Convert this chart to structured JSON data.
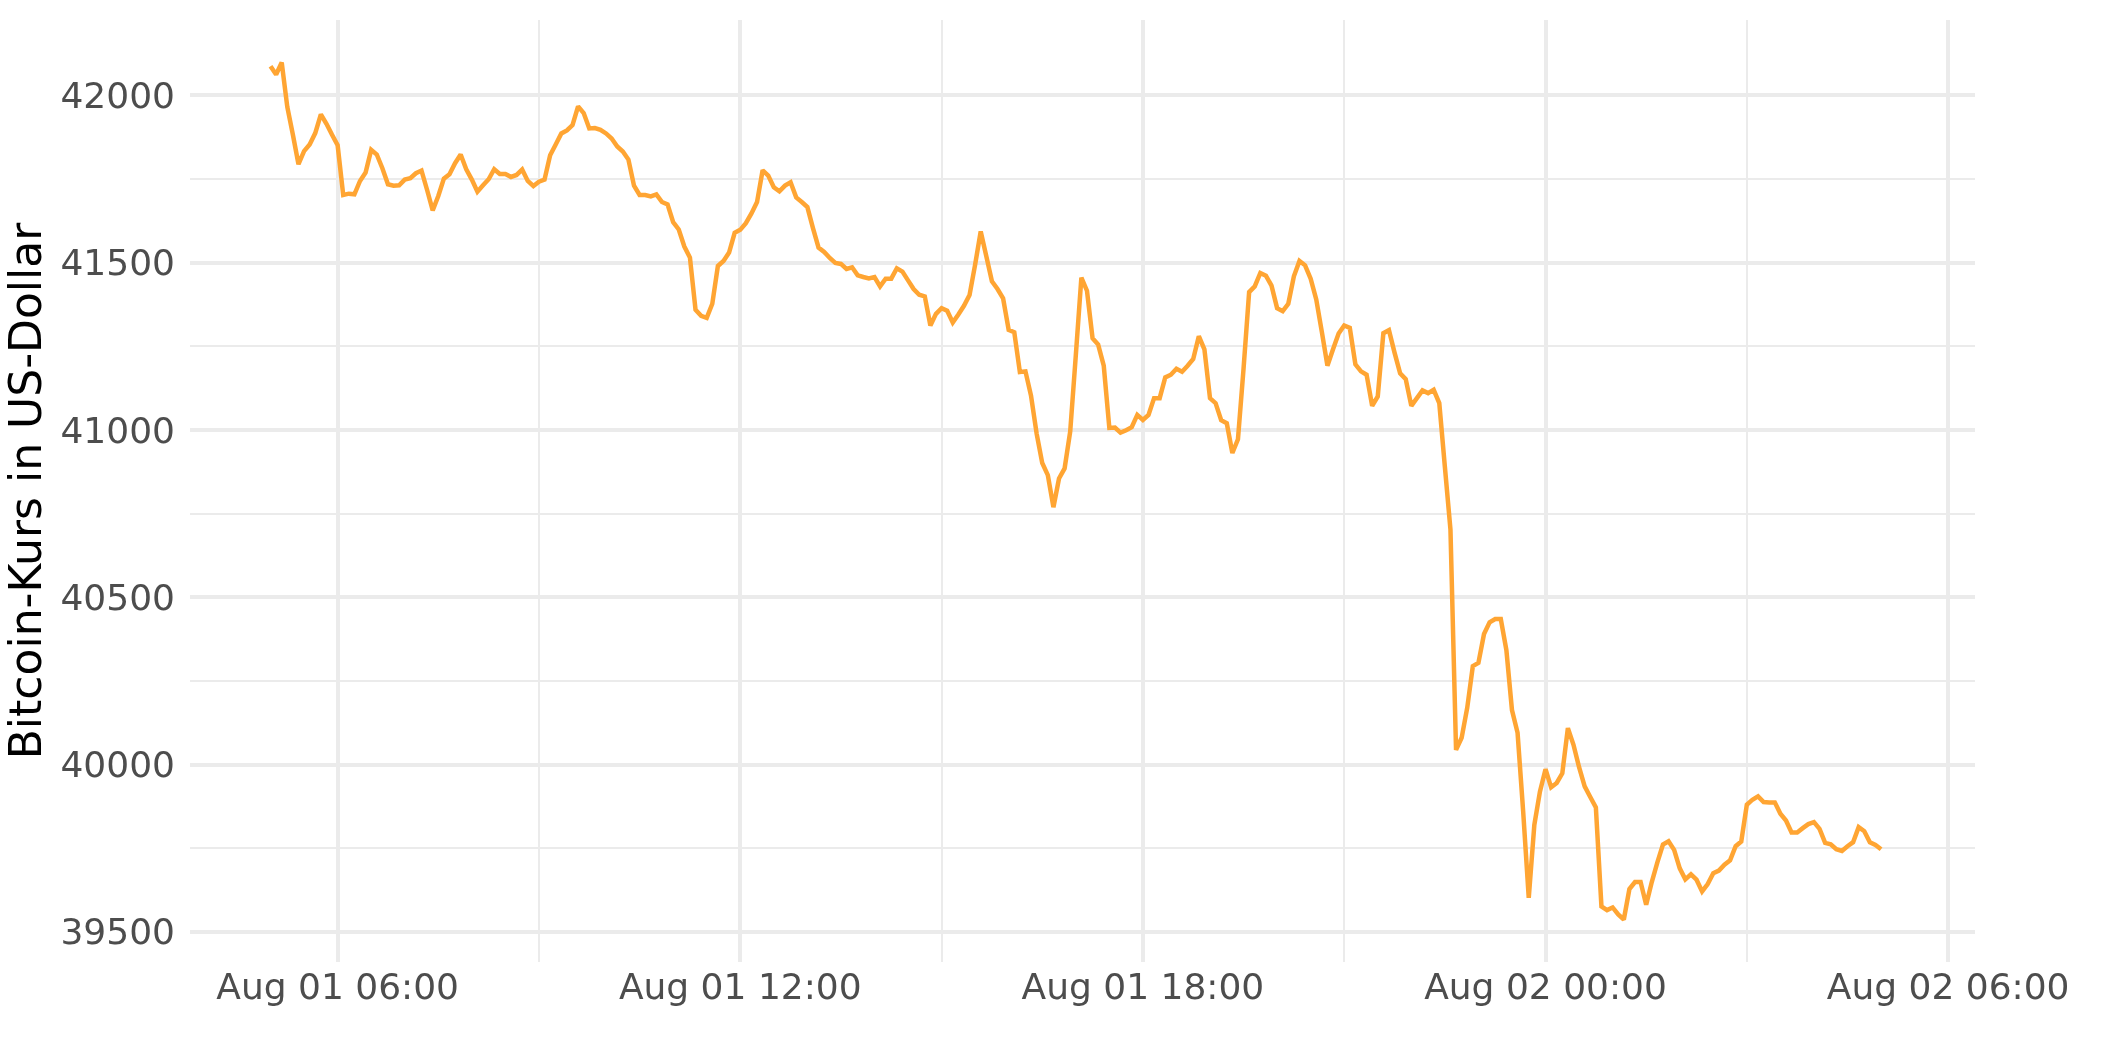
{
  "chart_data": {
    "type": "line",
    "ylabel": "Bitcoin-Kurs in US-Dollar",
    "xlim": [
      "--08-01T03:48",
      "--08-02T06:24"
    ],
    "ylim": [
      39410,
      42225
    ],
    "xticks": [
      {
        "value": "--08-01T06:00",
        "label": "Aug 01 06:00"
      },
      {
        "value": "--08-01T09:00",
        "label": null
      },
      {
        "value": "--08-01T12:00",
        "label": "Aug 01 12:00"
      },
      {
        "value": "--08-01T15:00",
        "label": null
      },
      {
        "value": "--08-01T18:00",
        "label": "Aug 01 18:00"
      },
      {
        "value": "--08-01T21:00",
        "label": null
      },
      {
        "value": "--08-02T00:00",
        "label": "Aug 02 00:00"
      },
      {
        "value": "--08-02T03:00",
        "label": null
      },
      {
        "value": "--08-02T06:00",
        "label": "Aug 02 06:00"
      }
    ],
    "yticks": [
      39500,
      {
        "value": 39750,
        "label": null
      },
      40000,
      {
        "value": 40250,
        "label": null
      },
      40500,
      {
        "value": 40750,
        "label": null
      },
      41000,
      {
        "value": 41250,
        "label": null
      },
      41500,
      {
        "value": 41750,
        "label": null
      },
      42000
    ],
    "grid": true,
    "line_style": "solid",
    "marker": "none",
    "x": [
      "--08-01T05:00",
      "--08-01T05:05",
      "--08-01T05:10",
      "--08-01T05:15",
      "--08-01T05:20",
      "--08-01T05:25",
      "--08-01T05:30",
      "--08-01T05:35",
      "--08-01T05:40",
      "--08-01T05:45",
      "--08-01T05:50",
      "--08-01T05:55",
      "--08-01T06:00",
      "--08-01T06:05",
      "--08-01T06:10",
      "--08-01T06:15",
      "--08-01T06:20",
      "--08-01T06:25",
      "--08-01T06:30",
      "--08-01T06:35",
      "--08-01T06:40",
      "--08-01T06:45",
      "--08-01T06:50",
      "--08-01T06:55",
      "--08-01T07:00",
      "--08-01T07:05",
      "--08-01T07:10",
      "--08-01T07:15",
      "--08-01T07:20",
      "--08-01T07:25",
      "--08-01T07:30",
      "--08-01T07:35",
      "--08-01T07:40",
      "--08-01T07:45",
      "--08-01T07:50",
      "--08-01T07:55",
      "--08-01T08:00",
      "--08-01T08:05",
      "--08-01T08:10",
      "--08-01T08:15",
      "--08-01T08:20",
      "--08-01T08:25",
      "--08-01T08:30",
      "--08-01T08:35",
      "--08-01T08:40",
      "--08-01T08:45",
      "--08-01T08:50",
      "--08-01T08:55",
      "--08-01T09:00",
      "--08-01T09:05",
      "--08-01T09:10",
      "--08-01T09:15",
      "--08-01T09:20",
      "--08-01T09:25",
      "--08-01T09:30",
      "--08-01T09:35",
      "--08-01T09:40",
      "--08-01T09:45",
      "--08-01T09:50",
      "--08-01T09:55",
      "--08-01T10:00",
      "--08-01T10:05",
      "--08-01T10:10",
      "--08-01T10:15",
      "--08-01T10:20",
      "--08-01T10:25",
      "--08-01T10:30",
      "--08-01T10:35",
      "--08-01T10:40",
      "--08-01T10:45",
      "--08-01T10:50",
      "--08-01T10:55",
      "--08-01T11:00",
      "--08-01T11:05",
      "--08-01T11:10",
      "--08-01T11:15",
      "--08-01T11:20",
      "--08-01T11:25",
      "--08-01T11:30",
      "--08-01T11:35",
      "--08-01T11:40",
      "--08-01T11:45",
      "--08-01T11:50",
      "--08-01T11:55",
      "--08-01T12:00",
      "--08-01T12:05",
      "--08-01T12:10",
      "--08-01T12:15",
      "--08-01T12:20",
      "--08-01T12:25",
      "--08-01T12:30",
      "--08-01T12:35",
      "--08-01T12:40",
      "--08-01T12:45",
      "--08-01T12:50",
      "--08-01T12:55",
      "--08-01T13:00",
      "--08-01T13:05",
      "--08-01T13:10",
      "--08-01T13:15",
      "--08-01T13:20",
      "--08-01T13:25",
      "--08-01T13:30",
      "--08-01T13:35",
      "--08-01T13:40",
      "--08-01T13:45",
      "--08-01T13:50",
      "--08-01T13:55",
      "--08-01T14:00",
      "--08-01T14:05",
      "--08-01T14:10",
      "--08-01T14:15",
      "--08-01T14:20",
      "--08-01T14:25",
      "--08-01T14:30",
      "--08-01T14:35",
      "--08-01T14:40",
      "--08-01T14:45",
      "--08-01T14:50",
      "--08-01T14:55",
      "--08-01T15:00",
      "--08-01T15:05",
      "--08-01T15:10",
      "--08-01T15:15",
      "--08-01T15:20",
      "--08-01T15:25",
      "--08-01T15:30",
      "--08-01T15:35",
      "--08-01T15:40",
      "--08-01T15:45",
      "--08-01T15:50",
      "--08-01T15:55",
      "--08-01T16:00",
      "--08-01T16:05",
      "--08-01T16:10",
      "--08-01T16:15",
      "--08-01T16:20",
      "--08-01T16:25",
      "--08-01T16:30",
      "--08-01T16:35",
      "--08-01T16:40",
      "--08-01T16:45",
      "--08-01T16:50",
      "--08-01T16:55",
      "--08-01T17:00",
      "--08-01T17:05",
      "--08-01T17:10",
      "--08-01T17:15",
      "--08-01T17:20",
      "--08-01T17:25",
      "--08-01T17:30",
      "--08-01T17:35",
      "--08-01T17:40",
      "--08-01T17:45",
      "--08-01T17:50",
      "--08-01T17:55",
      "--08-01T18:00",
      "--08-01T18:05",
      "--08-01T18:10",
      "--08-01T18:15",
      "--08-01T18:20",
      "--08-01T18:25",
      "--08-01T18:30",
      "--08-01T18:35",
      "--08-01T18:40",
      "--08-01T18:45",
      "--08-01T18:50",
      "--08-01T18:55",
      "--08-01T19:00",
      "--08-01T19:05",
      "--08-01T19:10",
      "--08-01T19:15",
      "--08-01T19:20",
      "--08-01T19:25",
      "--08-01T19:30",
      "--08-01T19:35",
      "--08-01T19:40",
      "--08-01T19:45",
      "--08-01T19:50",
      "--08-01T19:55",
      "--08-01T20:00",
      "--08-01T20:05",
      "--08-01T20:10",
      "--08-01T20:15",
      "--08-01T20:20",
      "--08-01T20:25",
      "--08-01T20:30",
      "--08-01T20:35",
      "--08-01T20:40",
      "--08-01T20:45",
      "--08-01T20:50",
      "--08-01T20:55",
      "--08-01T21:00",
      "--08-01T21:05",
      "--08-01T21:10",
      "--08-01T21:15",
      "--08-01T21:20",
      "--08-01T21:25",
      "--08-01T21:30",
      "--08-01T21:35",
      "--08-01T21:40",
      "--08-01T21:45",
      "--08-01T21:50",
      "--08-01T21:55",
      "--08-01T22:00",
      "--08-01T22:05",
      "--08-01T22:10",
      "--08-01T22:15",
      "--08-01T22:20",
      "--08-01T22:25",
      "--08-01T22:30",
      "--08-01T22:35",
      "--08-01T22:40",
      "--08-01T22:45",
      "--08-01T22:50",
      "--08-01T22:55",
      "--08-01T23:00",
      "--08-01T23:05",
      "--08-01T23:10",
      "--08-01T23:15",
      "--08-01T23:20",
      "--08-01T23:25",
      "--08-01T23:30",
      "--08-01T23:35",
      "--08-01T23:40",
      "--08-01T23:45",
      "--08-01T23:50",
      "--08-01T23:55",
      "--08-02T00:00",
      "--08-02T00:05",
      "--08-02T00:10",
      "--08-02T00:15",
      "--08-02T00:20",
      "--08-02T00:25",
      "--08-02T00:30",
      "--08-02T00:35",
      "--08-02T00:40",
      "--08-02T00:45",
      "--08-02T00:50",
      "--08-02T00:55",
      "--08-02T01:00",
      "--08-02T01:05",
      "--08-02T01:10",
      "--08-02T01:15",
      "--08-02T01:20",
      "--08-02T01:25",
      "--08-02T01:30",
      "--08-02T01:35",
      "--08-02T01:40",
      "--08-02T01:45",
      "--08-02T01:50",
      "--08-02T01:55",
      "--08-02T02:00",
      "--08-02T02:05",
      "--08-02T02:10",
      "--08-02T02:15",
      "--08-02T02:20",
      "--08-02T02:25",
      "--08-02T02:30",
      "--08-02T02:35",
      "--08-02T02:40",
      "--08-02T02:45",
      "--08-02T02:50",
      "--08-02T02:55",
      "--08-02T03:00",
      "--08-02T03:05",
      "--08-02T03:10",
      "--08-02T03:15",
      "--08-02T03:20",
      "--08-02T03:25",
      "--08-02T03:30",
      "--08-02T03:35",
      "--08-02T03:40",
      "--08-02T03:45",
      "--08-02T03:50",
      "--08-02T03:55",
      "--08-02T04:00",
      "--08-02T04:05",
      "--08-02T04:10",
      "--08-02T04:15",
      "--08-02T04:20",
      "--08-02T04:25",
      "--08-02T04:30",
      "--08-02T04:35",
      "--08-02T04:40",
      "--08-02T04:45",
      "--08-02T04:50",
      "--08-02T04:55",
      "--08-02T05:00"
    ],
    "series": [
      {
        "color": "#ffa533",
        "values": [
          42087,
          42062,
          42098,
          41965,
          41882,
          41794,
          41833,
          41853,
          41887,
          41943,
          41915,
          41882,
          41851,
          41702,
          41706,
          41704,
          41744,
          41769,
          41837,
          41823,
          41782,
          41734,
          41730,
          41731,
          41748,
          41752,
          41767,
          41775,
          41717,
          41656,
          41699,
          41751,
          41764,
          41797,
          41823,
          41779,
          41748,
          41712,
          41731,
          41749,
          41779,
          41765,
          41765,
          41756,
          41762,
          41778,
          41744,
          41729,
          41742,
          41748,
          41821,
          41853,
          41886,
          41895,
          41911,
          41967,
          41947,
          41901,
          41902,
          41897,
          41886,
          41871,
          41847,
          41832,
          41808,
          41730,
          41702,
          41702,
          41698,
          41704,
          41681,
          41674,
          41621,
          41599,
          41548,
          41515,
          41359,
          41341,
          41335,
          41377,
          41490,
          41505,
          41530,
          41589,
          41598,
          41618,
          41647,
          41681,
          41776,
          41760,
          41725,
          41713,
          41730,
          41740,
          41695,
          41681,
          41666,
          41603,
          41545,
          41532,
          41514,
          41499,
          41496,
          41481,
          41486,
          41462,
          41457,
          41453,
          41457,
          41429,
          41452,
          41452,
          41483,
          41473,
          41447,
          41421,
          41404,
          41399,
          41312,
          41347,
          41364,
          41356,
          41321,
          41345,
          41371,
          41403,
          41494,
          41593,
          41519,
          41444,
          41421,
          41393,
          41299,
          41292,
          41173,
          41175,
          41102,
          40989,
          40901,
          40865,
          40769,
          40855,
          40885,
          40995,
          41222,
          41455,
          41416,
          41274,
          41255,
          41192,
          41006,
          41007,
          40992,
          40999,
          41008,
          41045,
          41030,
          41045,
          41095,
          41095,
          41157,
          41165,
          41183,
          41174,
          41192,
          41212,
          41280,
          41241,
          41095,
          41080,
          41029,
          41020,
          40931,
          40972,
          41183,
          41412,
          41429,
          41469,
          41461,
          41431,
          41364,
          41355,
          41377,
          41459,
          41505,
          41492,
          41452,
          41390,
          41293,
          41192,
          41241,
          41288,
          41312,
          41305,
          41196,
          41175,
          41165,
          41072,
          41100,
          41289,
          41298,
          41231,
          41169,
          41152,
          41072,
          41095,
          41118,
          41110,
          41120,
          41080,
          40890,
          40702,
          40044,
          40080,
          40170,
          40294,
          40304,
          40390,
          40425,
          40435,
          40435,
          40342,
          40163,
          40095,
          39860,
          39602,
          39820,
          39919,
          39986,
          39932,
          39945,
          39974,
          40109,
          40059,
          39992,
          39935,
          39903,
          39872,
          39576,
          39565,
          39573,
          39552,
          39537,
          39628,
          39649,
          39649,
          39581,
          39649,
          39708,
          39761,
          39771,
          39745,
          39690,
          39657,
          39672,
          39656,
          39621,
          39643,
          39675,
          39683,
          39701,
          39714,
          39756,
          39770,
          39880,
          39895,
          39905,
          39888,
          39887,
          39887,
          39853,
          39833,
          39797,
          39797,
          39810,
          39822,
          39828,
          39808,
          39766,
          39762,
          39747,
          39742,
          39756,
          39768,
          39813,
          39801,
          39768,
          39760,
          39747
        ]
      }
    ]
  }
}
